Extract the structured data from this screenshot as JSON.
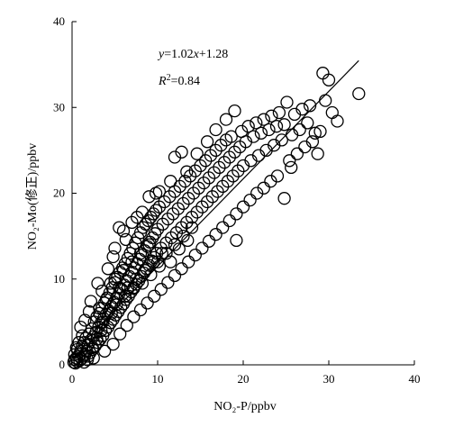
{
  "chart_data": {
    "type": "scatter",
    "title": "",
    "xlabel": "NO₂-P/ppbv",
    "ylabel": "NO₂-Mo(修正)/ppbv",
    "xlim": [
      0,
      40
    ],
    "ylim": [
      0,
      40
    ],
    "xticks": [
      "0",
      "10",
      "20",
      "30",
      "40"
    ],
    "yticks": [
      "0",
      "10",
      "20",
      "30",
      "40"
    ],
    "grid": false,
    "legend": "none",
    "marker": "open-circle",
    "fit_line": {
      "slope": 1.02,
      "intercept": 1.28,
      "x_range": [
        0,
        33.5
      ],
      "equation_label": "y=1.02x+1.28",
      "r2_label": "R²=0.84"
    },
    "points": [
      [
        0.2,
        0.3
      ],
      [
        0.3,
        0.6
      ],
      [
        0.4,
        0.2
      ],
      [
        0.5,
        0.8
      ],
      [
        0.6,
        0.4
      ],
      [
        0.8,
        1.0
      ],
      [
        0.9,
        0.5
      ],
      [
        1.0,
        1.6
      ],
      [
        1.1,
        0.7
      ],
      [
        1.2,
        2.2
      ],
      [
        1.3,
        1.0
      ],
      [
        1.4,
        2.6
      ],
      [
        1.5,
        1.2
      ],
      [
        1.6,
        3.1
      ],
      [
        1.7,
        1.6
      ],
      [
        1.8,
        0.6
      ],
      [
        1.9,
        2.4
      ],
      [
        2.0,
        3.6
      ],
      [
        2.1,
        1.4
      ],
      [
        2.2,
        2.9
      ],
      [
        2.3,
        4.2
      ],
      [
        2.4,
        1.8
      ],
      [
        2.5,
        3.3
      ],
      [
        2.6,
        5.0
      ],
      [
        2.7,
        2.2
      ],
      [
        2.8,
        3.8
      ],
      [
        2.9,
        5.6
      ],
      [
        3.0,
        2.6
      ],
      [
        3.1,
        4.4
      ],
      [
        3.2,
        6.0
      ],
      [
        3.3,
        3.0
      ],
      [
        3.4,
        4.9
      ],
      [
        3.5,
        6.6
      ],
      [
        3.6,
        3.4
      ],
      [
        3.7,
        5.4
      ],
      [
        3.8,
        7.2
      ],
      [
        3.9,
        4.0
      ],
      [
        4.0,
        5.9
      ],
      [
        4.1,
        7.8
      ],
      [
        4.2,
        4.4
      ],
      [
        4.3,
        6.3
      ],
      [
        4.4,
        8.4
      ],
      [
        4.5,
        4.9
      ],
      [
        4.6,
        6.8
      ],
      [
        4.7,
        9.0
      ],
      [
        4.8,
        5.3
      ],
      [
        4.9,
        7.3
      ],
      [
        5.0,
        9.6
      ],
      [
        5.1,
        5.8
      ],
      [
        5.2,
        7.8
      ],
      [
        5.3,
        10.2
      ],
      [
        5.4,
        6.2
      ],
      [
        5.5,
        8.3
      ],
      [
        5.6,
        10.8
      ],
      [
        5.7,
        6.7
      ],
      [
        5.8,
        8.8
      ],
      [
        5.9,
        11.3
      ],
      [
        6.0,
        7.1
      ],
      [
        6.1,
        9.3
      ],
      [
        6.2,
        11.8
      ],
      [
        6.3,
        7.6
      ],
      [
        6.4,
        9.8
      ],
      [
        6.5,
        12.4
      ],
      [
        6.6,
        8.0
      ],
      [
        6.7,
        10.3
      ],
      [
        6.8,
        13.0
      ],
      [
        6.9,
        8.5
      ],
      [
        7.0,
        10.8
      ],
      [
        7.1,
        13.6
      ],
      [
        7.2,
        8.9
      ],
      [
        7.3,
        11.3
      ],
      [
        7.4,
        14.2
      ],
      [
        7.5,
        9.4
      ],
      [
        7.6,
        11.8
      ],
      [
        7.7,
        14.8
      ],
      [
        7.8,
        9.8
      ],
      [
        7.9,
        12.3
      ],
      [
        8.0,
        15.4
      ],
      [
        8.1,
        10.3
      ],
      [
        8.2,
        12.8
      ],
      [
        8.3,
        16.0
      ],
      [
        8.4,
        10.7
      ],
      [
        8.5,
        13.3
      ],
      [
        8.6,
        16.4
      ],
      [
        8.7,
        11.2
      ],
      [
        8.8,
        13.8
      ],
      [
        8.9,
        16.8
      ],
      [
        9.0,
        11.6
      ],
      [
        9.1,
        14.3
      ],
      [
        9.2,
        17.2
      ],
      [
        9.3,
        12.1
      ],
      [
        9.4,
        14.8
      ],
      [
        9.5,
        17.6
      ],
      [
        9.6,
        12.5
      ],
      [
        9.7,
        15.3
      ],
      [
        9.8,
        18.0
      ],
      [
        9.9,
        13.0
      ],
      [
        10.0,
        15.8
      ],
      [
        10.2,
        18.4
      ],
      [
        10.4,
        13.6
      ],
      [
        10.6,
        16.4
      ],
      [
        10.8,
        19.0
      ],
      [
        11.0,
        14.2
      ],
      [
        11.2,
        17.0
      ],
      [
        11.4,
        19.6
      ],
      [
        11.6,
        14.8
      ],
      [
        11.8,
        17.6
      ],
      [
        12.0,
        20.2
      ],
      [
        12.2,
        15.4
      ],
      [
        12.4,
        18.2
      ],
      [
        12.6,
        20.8
      ],
      [
        12.8,
        16.0
      ],
      [
        13.0,
        18.8
      ],
      [
        13.2,
        21.4
      ],
      [
        13.4,
        16.6
      ],
      [
        13.6,
        19.4
      ],
      [
        13.8,
        22.0
      ],
      [
        14.0,
        17.2
      ],
      [
        14.2,
        20.0
      ],
      [
        14.4,
        22.6
      ],
      [
        14.6,
        17.8
      ],
      [
        14.8,
        20.6
      ],
      [
        15.0,
        23.2
      ],
      [
        15.2,
        18.4
      ],
      [
        15.4,
        21.2
      ],
      [
        15.6,
        23.8
      ],
      [
        15.8,
        19.0
      ],
      [
        16.0,
        21.8
      ],
      [
        16.2,
        24.4
      ],
      [
        16.4,
        19.6
      ],
      [
        16.6,
        22.4
      ],
      [
        16.8,
        25.0
      ],
      [
        17.0,
        20.2
      ],
      [
        17.2,
        23.0
      ],
      [
        17.4,
        25.6
      ],
      [
        17.6,
        20.8
      ],
      [
        17.8,
        23.6
      ],
      [
        18.0,
        26.2
      ],
      [
        18.2,
        21.4
      ],
      [
        18.4,
        24.2
      ],
      [
        18.6,
        26.6
      ],
      [
        18.8,
        22.0
      ],
      [
        19.0,
        24.8
      ],
      [
        19.2,
        14.5
      ],
      [
        19.4,
        22.6
      ],
      [
        19.6,
        25.4
      ],
      [
        19.8,
        27.2
      ],
      [
        20.0,
        23.2
      ],
      [
        20.3,
        26.0
      ],
      [
        20.6,
        27.8
      ],
      [
        20.9,
        23.8
      ],
      [
        21.2,
        26.6
      ],
      [
        21.5,
        28.2
      ],
      [
        21.8,
        24.4
      ],
      [
        22.1,
        27.0
      ],
      [
        22.4,
        28.6
      ],
      [
        22.7,
        25.0
      ],
      [
        23.0,
        27.4
      ],
      [
        23.3,
        29.0
      ],
      [
        23.6,
        25.6
      ],
      [
        23.9,
        27.8
      ],
      [
        24.2,
        29.4
      ],
      [
        24.5,
        26.2
      ],
      [
        24.8,
        28.0
      ],
      [
        25.1,
        30.6
      ],
      [
        25.4,
        23.8
      ],
      [
        25.7,
        26.8
      ],
      [
        26.0,
        29.2
      ],
      [
        26.3,
        24.6
      ],
      [
        26.6,
        27.4
      ],
      [
        26.9,
        29.8
      ],
      [
        27.2,
        25.4
      ],
      [
        27.5,
        28.2
      ],
      [
        27.8,
        30.2
      ],
      [
        28.1,
        26.0
      ],
      [
        28.4,
        27.0
      ],
      [
        28.7,
        24.6
      ],
      [
        29.0,
        27.2
      ],
      [
        29.3,
        34.0
      ],
      [
        29.6,
        30.8
      ],
      [
        30.0,
        33.2
      ],
      [
        30.4,
        29.4
      ],
      [
        31.0,
        28.4
      ],
      [
        33.5,
        31.6
      ],
      [
        3.0,
        9.5
      ],
      [
        4.2,
        11.2
      ],
      [
        5.0,
        13.6
      ],
      [
        6.3,
        14.6
      ],
      [
        7.0,
        16.6
      ],
      [
        8.2,
        17.8
      ],
      [
        9.0,
        19.6
      ],
      [
        10.2,
        20.2
      ],
      [
        11.5,
        21.4
      ],
      [
        12.0,
        24.2
      ],
      [
        13.4,
        22.5
      ],
      [
        14.6,
        24.6
      ],
      [
        15.8,
        26.0
      ],
      [
        16.8,
        27.4
      ],
      [
        18.0,
        28.6
      ],
      [
        19.0,
        29.6
      ],
      [
        2.2,
        7.4
      ],
      [
        3.5,
        8.6
      ],
      [
        1.5,
        5.2
      ],
      [
        2.0,
        6.2
      ],
      [
        4.8,
        12.6
      ],
      [
        6.0,
        15.6
      ],
      [
        7.6,
        17.2
      ],
      [
        5.5,
        16.0
      ],
      [
        9.8,
        20.0
      ],
      [
        12.8,
        24.8
      ],
      [
        1.0,
        4.4
      ],
      [
        2.5,
        0.8
      ],
      [
        3.8,
        1.6
      ],
      [
        4.8,
        2.4
      ],
      [
        5.6,
        3.6
      ],
      [
        6.4,
        4.6
      ],
      [
        7.2,
        5.6
      ],
      [
        8.0,
        6.4
      ],
      [
        8.8,
        7.2
      ],
      [
        9.6,
        8.0
      ],
      [
        10.4,
        8.8
      ],
      [
        11.2,
        9.6
      ],
      [
        12.0,
        10.4
      ],
      [
        12.8,
        11.2
      ],
      [
        13.6,
        12.0
      ],
      [
        14.4,
        12.8
      ],
      [
        15.2,
        13.6
      ],
      [
        16.0,
        14.4
      ],
      [
        16.8,
        15.2
      ],
      [
        17.6,
        16.0
      ],
      [
        18.4,
        16.8
      ],
      [
        19.2,
        17.6
      ],
      [
        20.0,
        18.4
      ],
      [
        20.8,
        19.2
      ],
      [
        21.6,
        20.0
      ],
      [
        22.4,
        20.6
      ],
      [
        23.2,
        21.4
      ],
      [
        24.0,
        22.0
      ],
      [
        24.8,
        19.4
      ],
      [
        25.6,
        23.0
      ],
      [
        5.0,
        10.0
      ],
      [
        6.0,
        11.0
      ],
      [
        7.0,
        12.0
      ],
      [
        8.0,
        13.0
      ],
      [
        9.0,
        14.0
      ],
      [
        10.0,
        12.0
      ],
      [
        11.0,
        13.0
      ],
      [
        12.0,
        14.0
      ],
      [
        13.0,
        15.0
      ],
      [
        14.0,
        16.0
      ],
      [
        6.5,
        9.0
      ],
      [
        7.5,
        10.0
      ],
      [
        8.5,
        11.0
      ],
      [
        9.5,
        12.0
      ],
      [
        10.5,
        13.0
      ],
      [
        11.5,
        12.0
      ],
      [
        12.5,
        13.5
      ],
      [
        13.5,
        14.5
      ],
      [
        4.5,
        9.5
      ],
      [
        5.5,
        9.0
      ],
      [
        3.2,
        6.6
      ],
      [
        4.0,
        7.6
      ],
      [
        3.6,
        5.0
      ],
      [
        4.6,
        6.0
      ],
      [
        5.2,
        7.0
      ],
      [
        6.2,
        8.0
      ],
      [
        7.2,
        9.0
      ],
      [
        8.2,
        9.5
      ],
      [
        9.2,
        10.5
      ],
      [
        10.2,
        11.5
      ],
      [
        0.6,
        1.8
      ],
      [
        0.8,
        2.6
      ],
      [
        1.2,
        3.4
      ],
      [
        1.4,
        0.3
      ],
      [
        1.9,
        1.0
      ],
      [
        2.4,
        2.0
      ],
      [
        2.9,
        3.0
      ],
      [
        3.4,
        4.0
      ],
      [
        0.3,
        1.2
      ],
      [
        0.5,
        2.0
      ]
    ]
  }
}
